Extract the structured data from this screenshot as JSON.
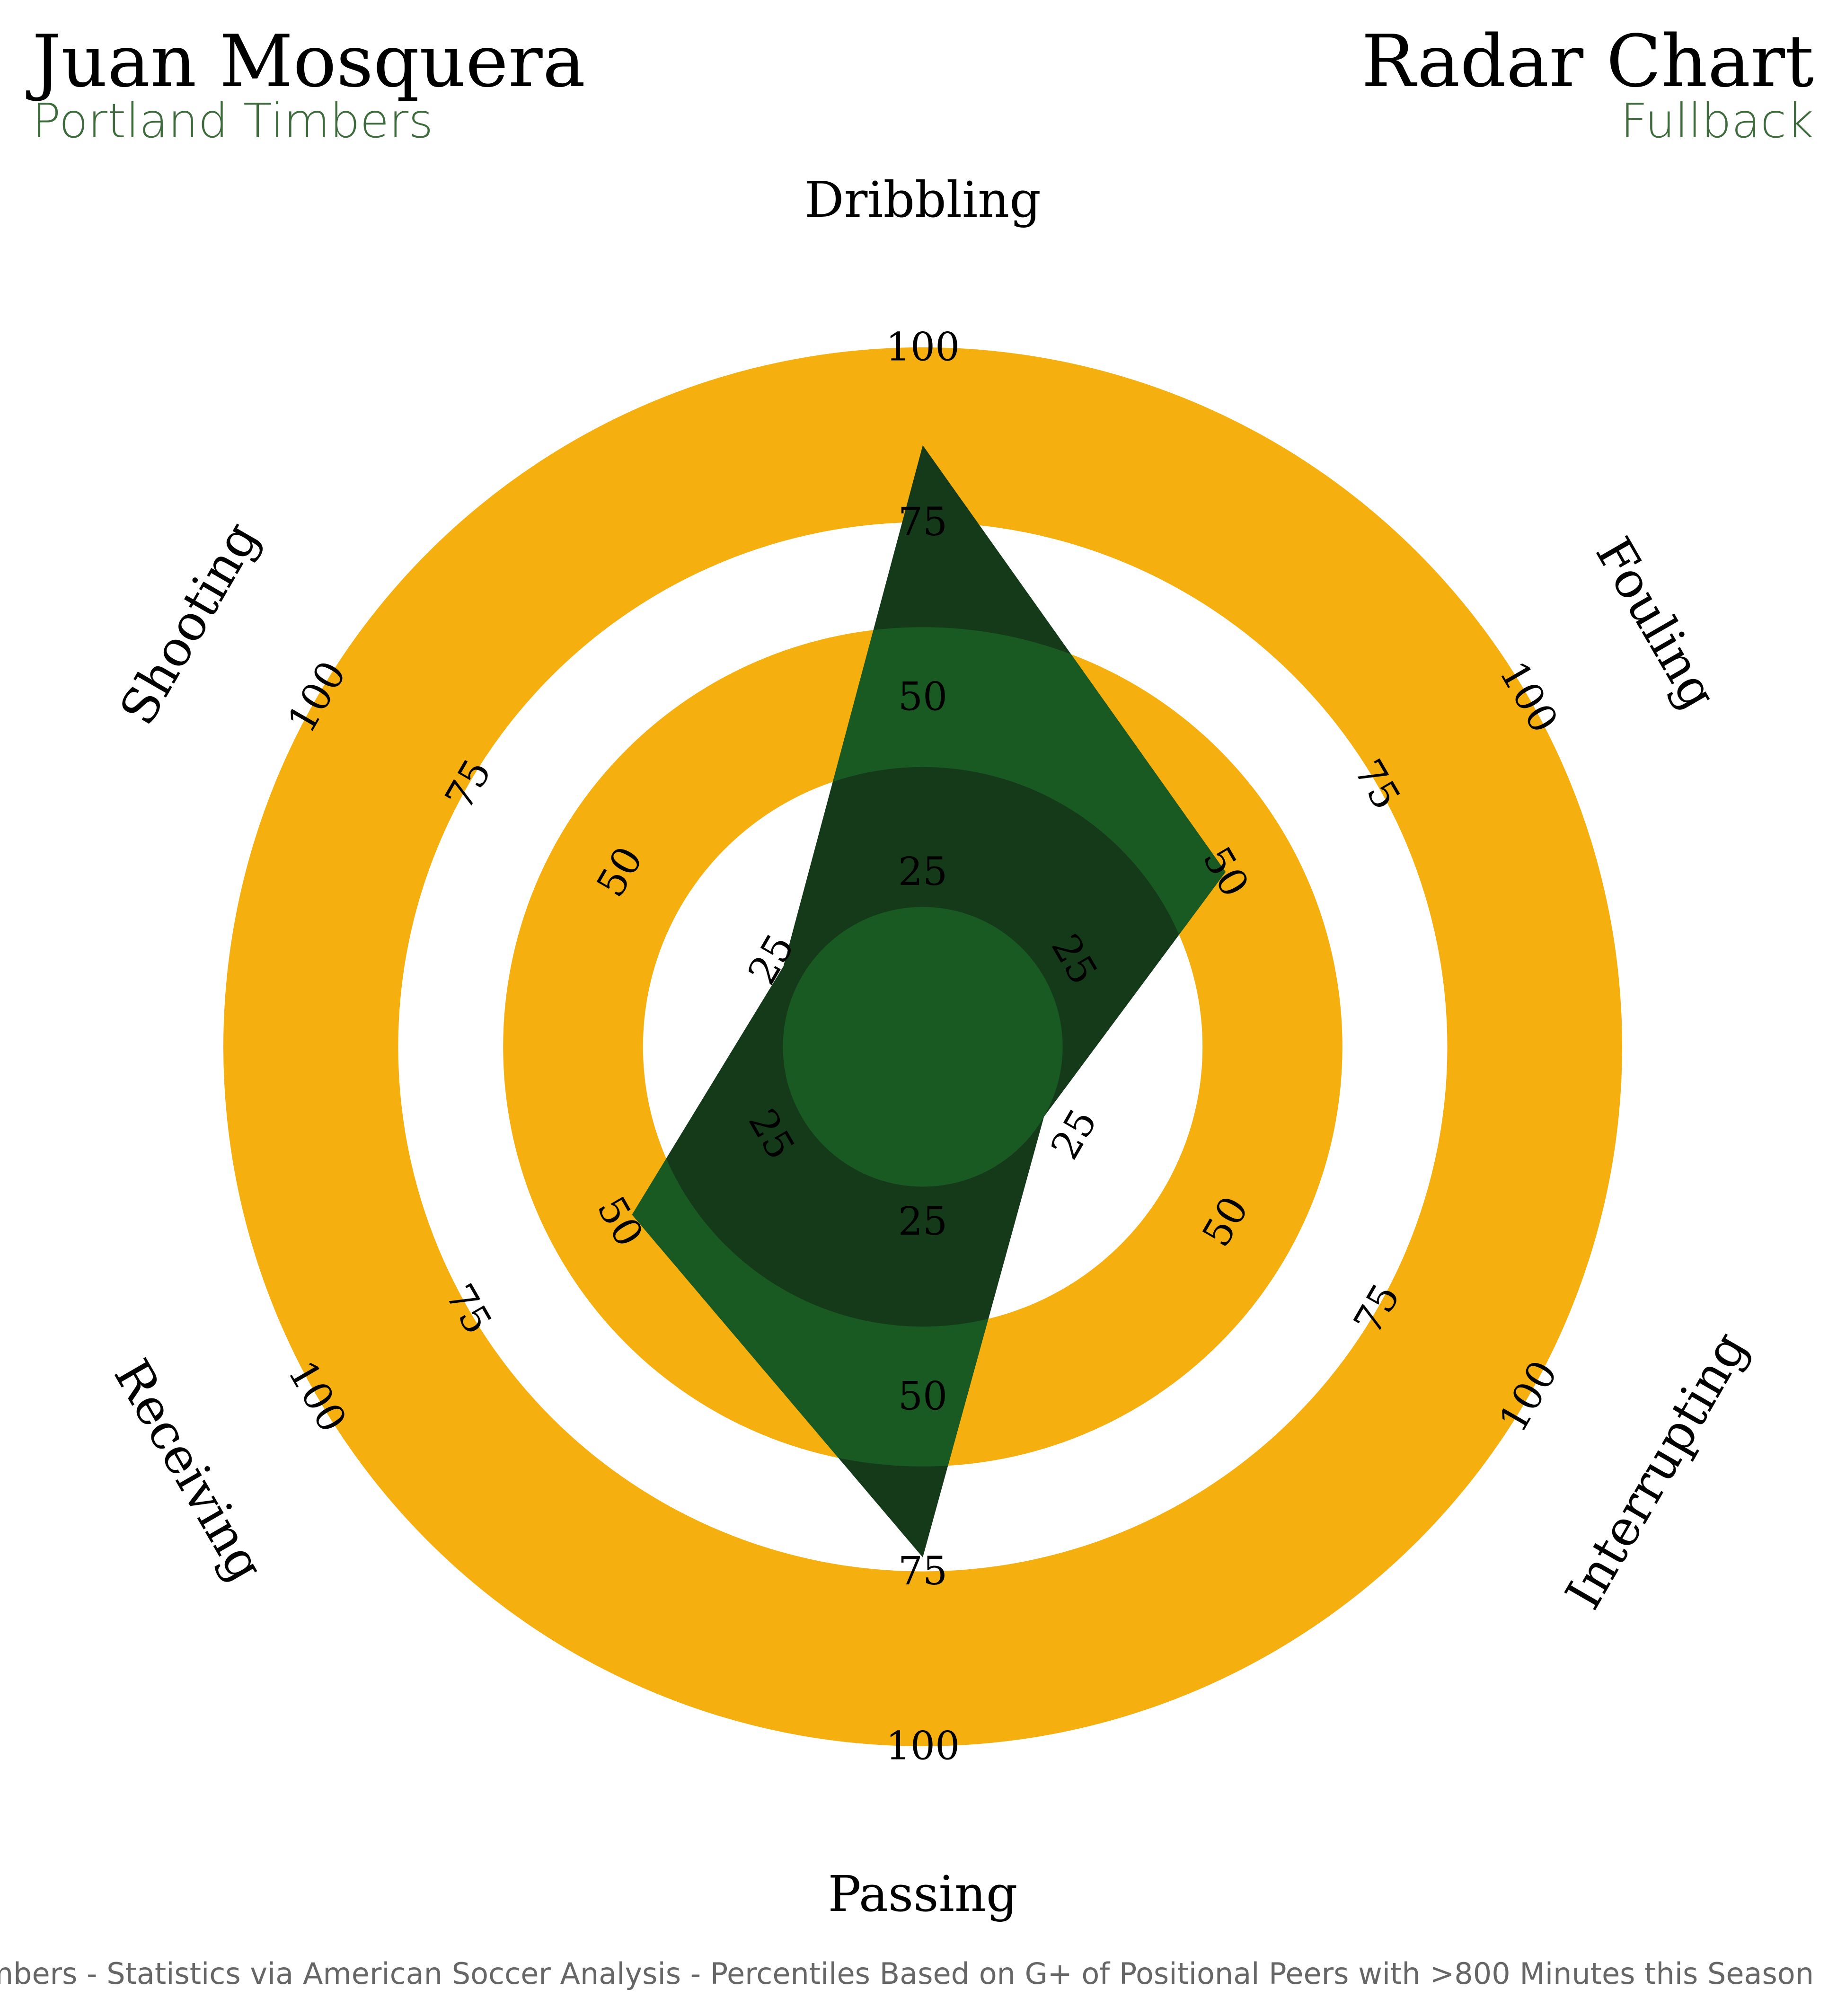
{
  "header": {
    "player_name": "Juan Mosquera",
    "team": "Portland Timbers",
    "chart_title": "Radar Chart",
    "position": "Fullback"
  },
  "footer": {
    "credit": "Made by TotalTimbers - Statistics via American Soccer Analysis - Percentiles Based on G+ of Positional Peers with >800 Minutes this Season"
  },
  "colors": {
    "ring_gold": "#F5AF0F",
    "ring_white": "#FFFFFF",
    "inner_green": "#195A23",
    "inner_dark": "#153A1A",
    "polygon_green": "#195A23",
    "polygon_dark": "#143A1A",
    "accent_text": "#3E6B3C"
  },
  "chart_data": {
    "type": "radar",
    "categories": [
      "Dribbling",
      "Fouling",
      "Interrupting",
      "Passing",
      "Receiving",
      "Shooting"
    ],
    "series": [
      {
        "values": [
          86,
          50,
          20,
          73,
          48,
          23
        ]
      }
    ],
    "rlim": [
      0,
      100
    ],
    "ring_ticks": [
      25,
      50,
      75,
      100
    ],
    "tick_labels_by_axis": [
      [
        "25",
        "50",
        "75",
        "100"
      ],
      [
        "25",
        "50",
        "75",
        "100"
      ],
      [
        "25",
        "50",
        "75",
        "100"
      ],
      [
        "25",
        "50",
        "75",
        "100"
      ],
      [
        "25",
        "50",
        "75",
        "100"
      ],
      [
        "25",
        "50",
        "75",
        "100"
      ]
    ]
  }
}
